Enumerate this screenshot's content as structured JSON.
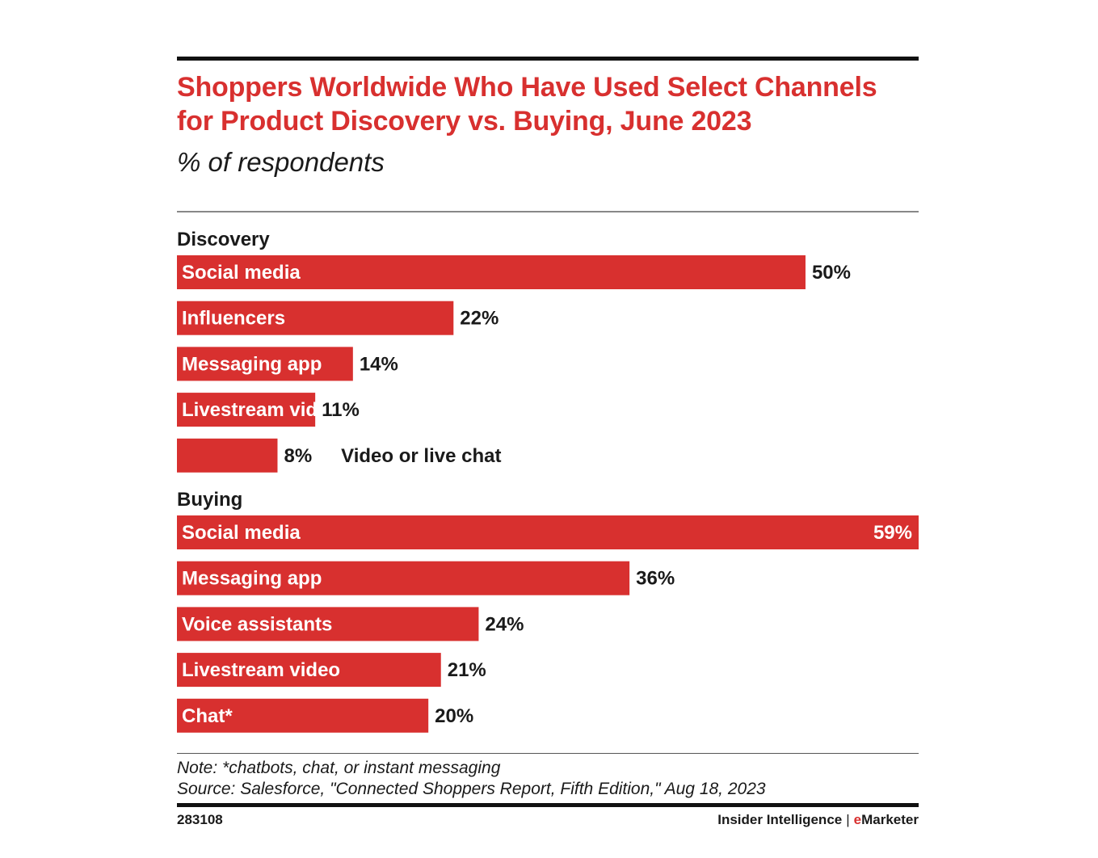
{
  "header": {
    "title": "Shoppers Worldwide Who Have Used Select Channels for Product Discovery vs. Buying, June 2023",
    "subtitle": "% of respondents"
  },
  "chart_data": {
    "type": "bar",
    "orientation": "horizontal",
    "value_suffix": "%",
    "xlim": [
      0,
      59
    ],
    "grid": false,
    "groups": [
      {
        "name": "Discovery",
        "bars": [
          {
            "category": "Social media",
            "value": 50,
            "label": "50%"
          },
          {
            "category": "Influencers",
            "value": 22,
            "label": "22%"
          },
          {
            "category": "Messaging app",
            "value": 14,
            "label": "14%"
          },
          {
            "category": "Livestream video",
            "value": 11,
            "label": "11%"
          },
          {
            "category": "Video or live chat",
            "value": 8,
            "label": "8%"
          }
        ]
      },
      {
        "name": "Buying",
        "bars": [
          {
            "category": "Social media",
            "value": 59,
            "label": "59%"
          },
          {
            "category": "Messaging app",
            "value": 36,
            "label": "36%"
          },
          {
            "category": "Voice assistants",
            "value": 24,
            "label": "24%"
          },
          {
            "category": "Livestream video",
            "value": 21,
            "label": "21%"
          },
          {
            "category": "Chat*",
            "value": 20,
            "label": "20%"
          }
        ]
      }
    ],
    "bar_color": "#d8302f"
  },
  "footer": {
    "note": "Note: *chatbots, chat, or instant messaging",
    "source": "Source: Salesforce, \"Connected Shoppers Report, Fifth Edition,\" Aug 18, 2023",
    "chart_id": "283108",
    "brand_left": "Insider Intelligence",
    "brand_separator": "|",
    "brand_right_e": "e",
    "brand_right_rest": "Marketer"
  }
}
